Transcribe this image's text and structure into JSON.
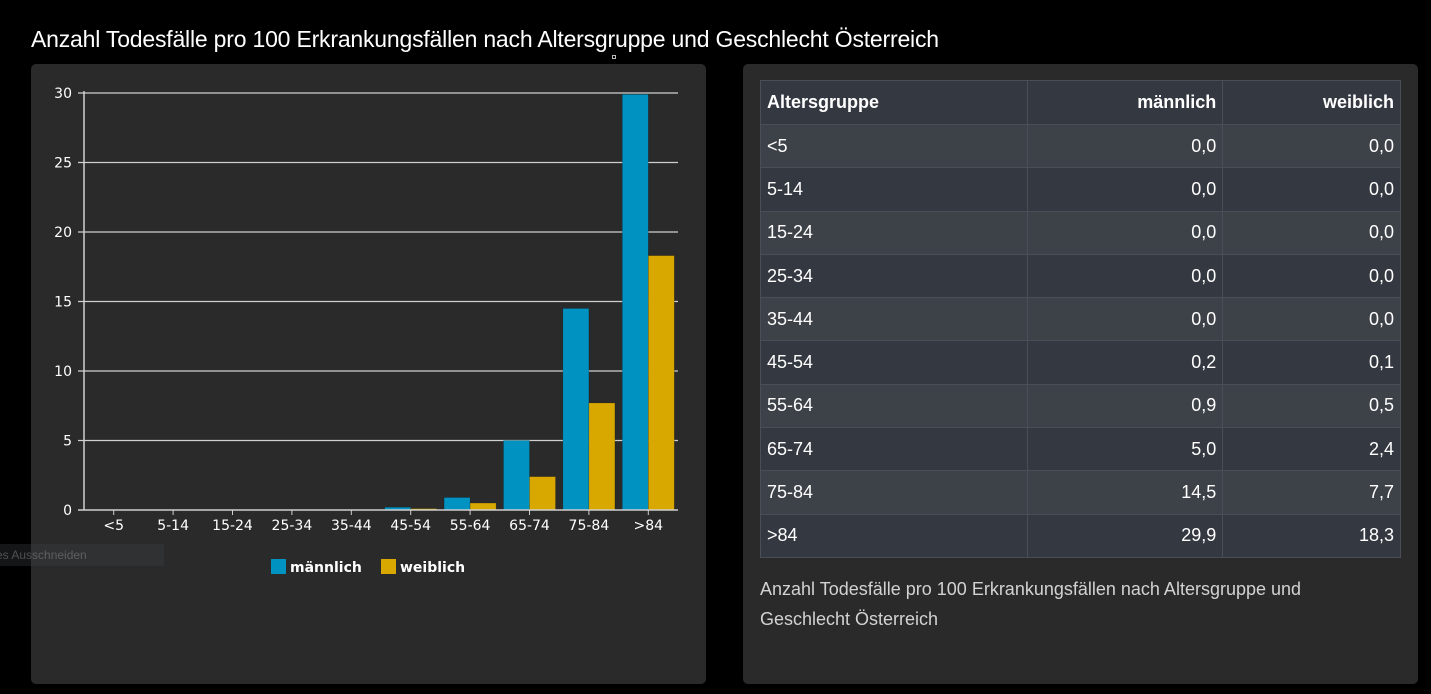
{
  "page": {
    "title": "Anzahl Todesfälle pro 100 Erkrankungsfällen nach Altersgruppe und Geschlecht Österreich",
    "tooltip_fragment": "es Ausschneiden"
  },
  "colors": {
    "maennlich": "#0092c0",
    "weiblich": "#d8a800",
    "grid": "#d0d0d0",
    "panel_bg": "#2a2a2a",
    "page_bg": "#000000"
  },
  "chart_data": {
    "type": "bar",
    "title": "",
    "xlabel": "",
    "ylabel": "",
    "categories": [
      "<5",
      "5-14",
      "15-24",
      "25-34",
      "35-44",
      "45-54",
      "55-64",
      "65-74",
      "75-84",
      ">84"
    ],
    "series": [
      {
        "name": "männlich",
        "color": "#0092c0",
        "values": [
          0.0,
          0.0,
          0.0,
          0.0,
          0.0,
          0.2,
          0.9,
          5.0,
          14.5,
          29.9
        ]
      },
      {
        "name": "weiblich",
        "color": "#d8a800",
        "values": [
          0.0,
          0.0,
          0.0,
          0.0,
          0.0,
          0.1,
          0.5,
          2.4,
          7.7,
          18.3
        ]
      }
    ],
    "ylim": [
      0,
      30
    ],
    "yticks": [
      0,
      5,
      10,
      15,
      20,
      25,
      30
    ],
    "grid": true,
    "legend": "bottom-center"
  },
  "table": {
    "headers": [
      "Altersgruppe",
      "männlich",
      "weiblich"
    ],
    "rows": [
      [
        "<5",
        "0,0",
        "0,0"
      ],
      [
        "5-14",
        "0,0",
        "0,0"
      ],
      [
        "15-24",
        "0,0",
        "0,0"
      ],
      [
        "25-34",
        "0,0",
        "0,0"
      ],
      [
        "35-44",
        "0,0",
        "0,0"
      ],
      [
        "45-54",
        "0,2",
        "0,1"
      ],
      [
        "55-64",
        "0,9",
        "0,5"
      ],
      [
        "65-74",
        "5,0",
        "2,4"
      ],
      [
        "75-84",
        "14,5",
        "7,7"
      ],
      [
        ">84",
        "29,9",
        "18,3"
      ]
    ],
    "caption": "Anzahl Todesfälle pro 100 Erkrankungsfällen nach Altersgruppe und Geschlecht Österreich"
  }
}
